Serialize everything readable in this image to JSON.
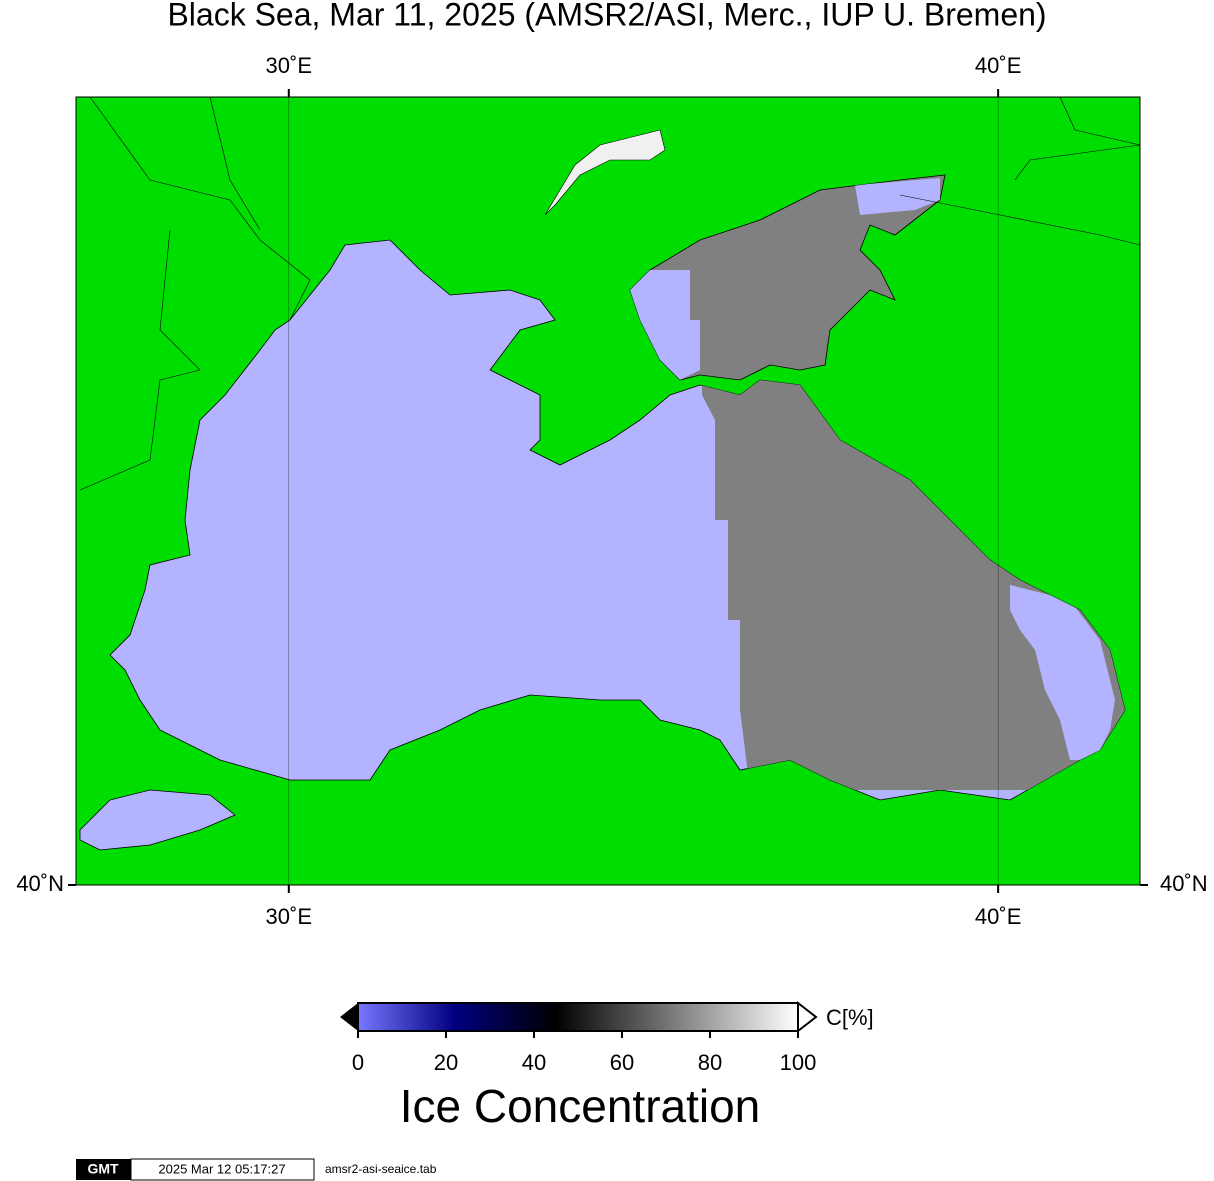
{
  "title": "Black Sea, Mar 11, 2025 (AMSR2/ASI, Merc., IUP U. Bremen)",
  "map": {
    "xlim": [
      27,
      42
    ],
    "ylim": [
      40,
      48
    ],
    "lon_ticks": [
      {
        "value": 30,
        "label": "30˚E"
      },
      {
        "value": 40,
        "label": "40˚E"
      }
    ],
    "lat_ticks": [
      {
        "value": 40,
        "label": "40˚N"
      }
    ],
    "land_color": "#00dd00"
  },
  "colorbar": {
    "lim": [
      0,
      100
    ],
    "ticks": [
      0,
      20,
      40,
      60,
      80,
      100
    ],
    "unit": "C[%]",
    "label": "Ice Concentration"
  },
  "footer": {
    "logo": "GMT",
    "timestamp": "2025 Mar 12 05:17:27",
    "file": "amsr2-asi-seaice.tab"
  }
}
